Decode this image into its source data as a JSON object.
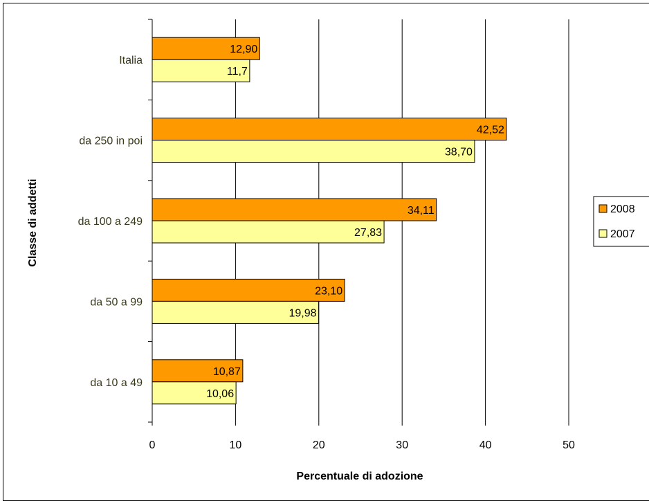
{
  "colors": {
    "series_2008": "#FF9900",
    "series_2007": "#FFFF99",
    "bar_border": "#000000",
    "gridline": "#000000",
    "category_text": "#3a3a1a"
  },
  "chart_data": {
    "type": "bar",
    "orientation": "horizontal",
    "categories": [
      "Italia",
      "da 250 in poi",
      "da 100 a 249",
      "da 50 a 99",
      "da 10 a 49"
    ],
    "series": [
      {
        "name": "2008",
        "values": [
          12.9,
          42.52,
          34.11,
          23.1,
          10.87
        ],
        "labels": [
          "12,90",
          "42,52",
          "34,11",
          "23,10",
          "10,87"
        ]
      },
      {
        "name": "2007",
        "values": [
          11.7,
          38.7,
          27.83,
          19.98,
          10.06
        ],
        "labels": [
          "11,7",
          "38,70",
          "27,83",
          "19,98",
          "10,06"
        ]
      }
    ],
    "xlabel": "Percentuale di adozione",
    "ylabel": "Classe di addetti",
    "xlim": [
      0,
      50
    ],
    "xticks": [
      0,
      10,
      20,
      30,
      40,
      50
    ],
    "grid": true,
    "legend_position": "right"
  }
}
